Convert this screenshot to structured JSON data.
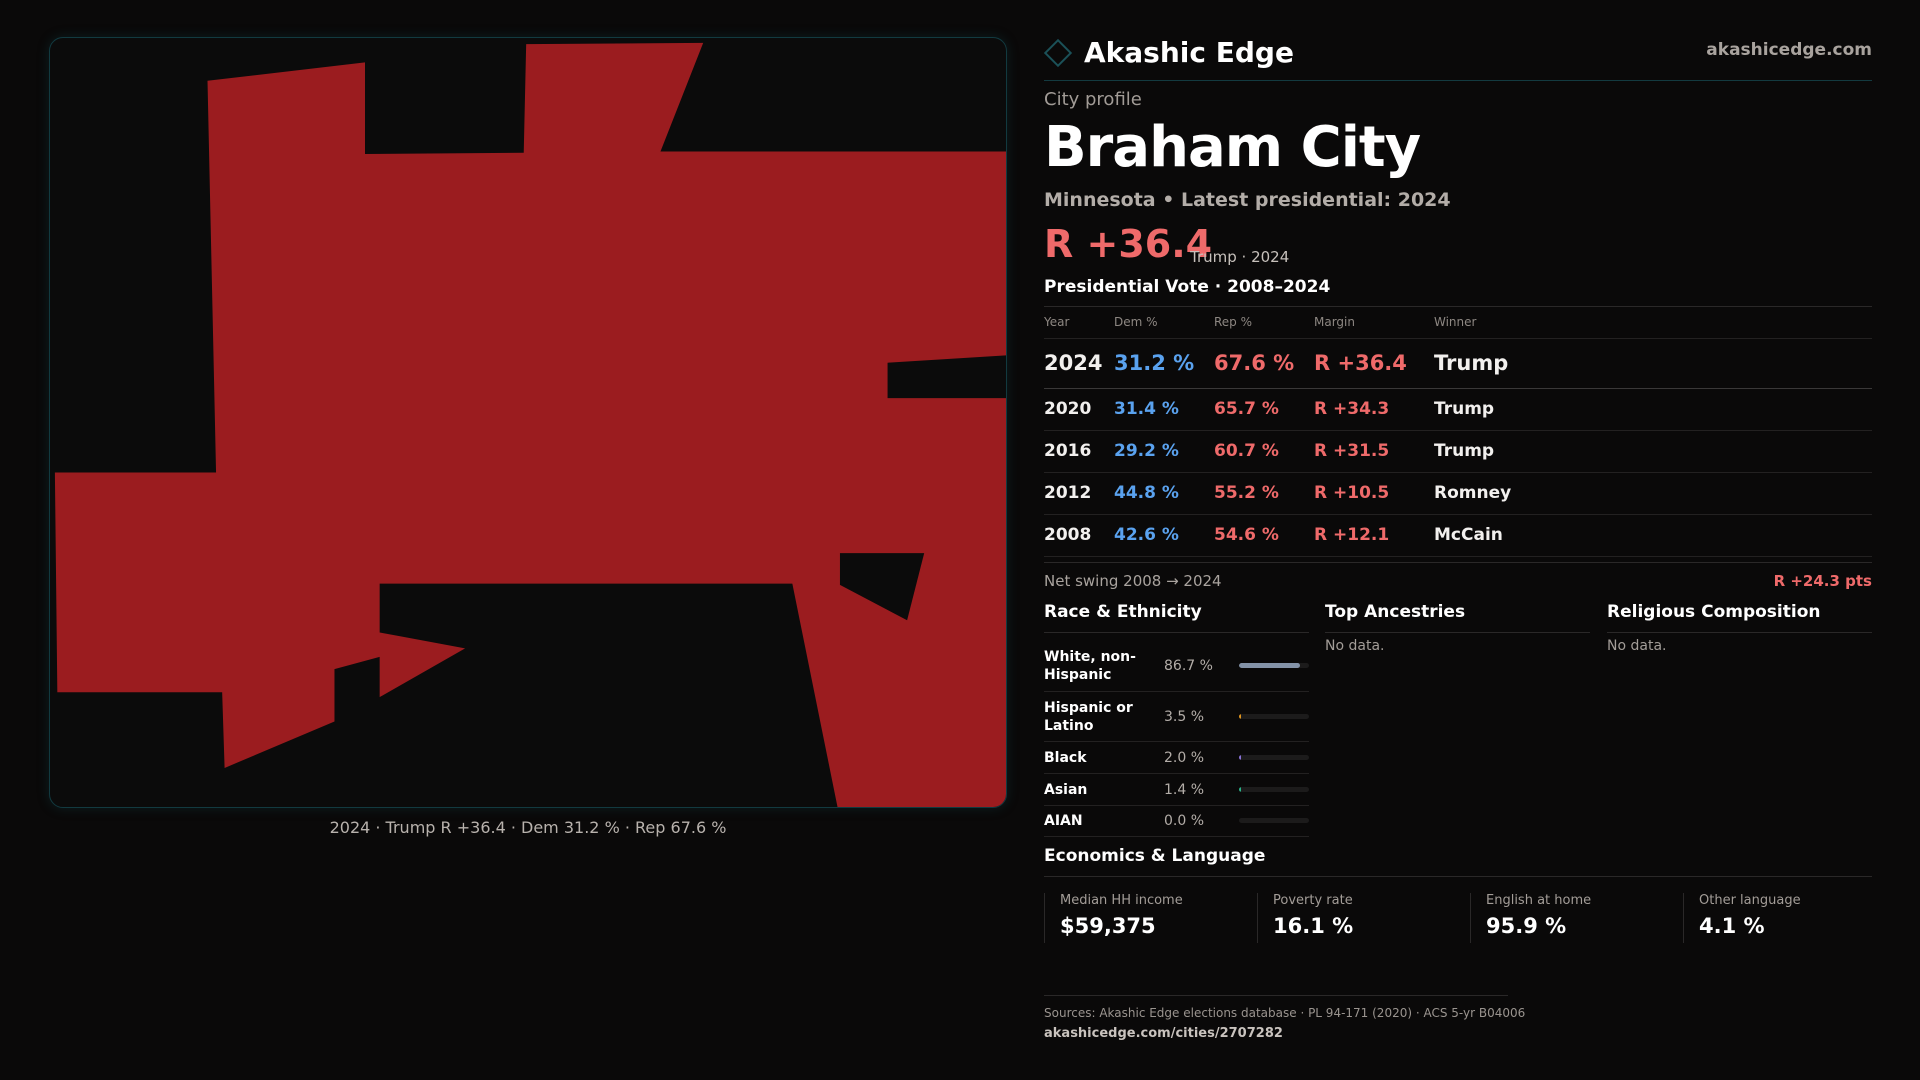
{
  "brand": {
    "name": "Akashic Edge",
    "site": "akashicedge.com",
    "logo_icon": "diamond-icon"
  },
  "map": {
    "fill_color": "#9b1c1f",
    "caption": "2024 · Trump R +36.4 · Dem 31.2 % · Rep 67.6 %"
  },
  "profile": {
    "kicker": "City profile",
    "title": "Braham City",
    "subtitle": "Minnesota • Latest presidential: 2024",
    "margin": "R +36.4",
    "margin_note": "Trump · 2024"
  },
  "votes": {
    "title": "Presidential Vote · 2008–2024",
    "headers": [
      "Year",
      "Dem %",
      "Rep %",
      "Margin",
      "Winner"
    ],
    "rows": [
      {
        "year": "2024",
        "dem": "31.2 %",
        "rep": "67.6 %",
        "margin": "R +36.4",
        "winner": "Trump"
      },
      {
        "year": "2020",
        "dem": "31.4 %",
        "rep": "65.7 %",
        "margin": "R +34.3",
        "winner": "Trump"
      },
      {
        "year": "2016",
        "dem": "29.2 %",
        "rep": "60.7 %",
        "margin": "R +31.5",
        "winner": "Trump"
      },
      {
        "year": "2012",
        "dem": "44.8 %",
        "rep": "55.2 %",
        "margin": "R +10.5",
        "winner": "Romney"
      },
      {
        "year": "2008",
        "dem": "42.6 %",
        "rep": "54.6 %",
        "margin": "R +12.1",
        "winner": "McCain"
      }
    ]
  },
  "swing": {
    "label": "Net swing 2008 → 2024",
    "value": "R +24.3 pts"
  },
  "race": {
    "title": "Race & Ethnicity",
    "items": [
      {
        "label": "White, non-Hispanic",
        "pct": "86.7 %",
        "value": 86.7,
        "color": "#8493a8"
      },
      {
        "label": "Hispanic or Latino",
        "pct": "3.5 %",
        "value": 3.5,
        "color": "#e0951f"
      },
      {
        "label": "Black",
        "pct": "2.0 %",
        "value": 2.0,
        "color": "#8a72d8"
      },
      {
        "label": "Asian",
        "pct": "1.4 %",
        "value": 1.4,
        "color": "#2bb38a"
      },
      {
        "label": "AIAN",
        "pct": "0.0 %",
        "value": 0.0,
        "color": "#c0a040"
      }
    ]
  },
  "ancestry": {
    "title": "Top Ancestries",
    "empty": "No data."
  },
  "religion": {
    "title": "Religious Composition",
    "empty": "No data."
  },
  "econ": {
    "title": "Economics & Language",
    "items": [
      {
        "label": "Median HH income",
        "value": "$59,375"
      },
      {
        "label": "Poverty rate",
        "value": "16.1 %"
      },
      {
        "label": "English at home",
        "value": "95.9 %"
      },
      {
        "label": "Other language",
        "value": "4.1 %"
      }
    ]
  },
  "footer": {
    "sources": "Sources: Akashic Edge elections database · PL 94-171 (2020) · ACS 5-yr B04006",
    "url": "akashicedge.com/cities/2707282"
  }
}
